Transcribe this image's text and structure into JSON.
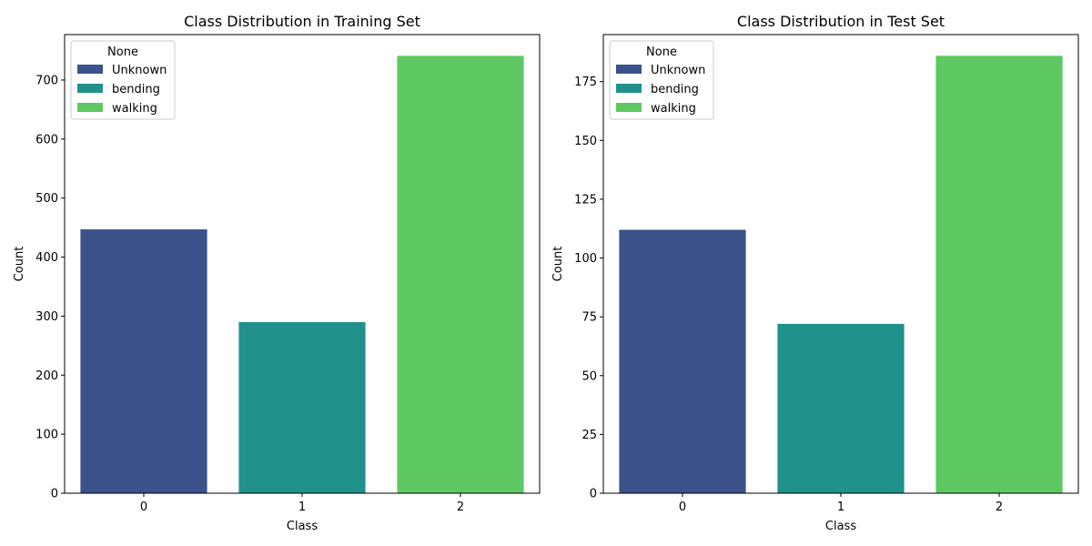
{
  "legend_title": "None",
  "chart_data": [
    {
      "type": "bar",
      "title": "Class Distribution in Training Set",
      "xlabel": "Class",
      "ylabel": "Count",
      "categories": [
        "0",
        "1",
        "2"
      ],
      "values": [
        447,
        290,
        741
      ],
      "series_names": [
        "Unknown",
        "bending",
        "walking"
      ],
      "colors": [
        "#3b528b",
        "#21918c",
        "#5ec962"
      ],
      "ylim": [
        0,
        777
      ],
      "yticks": [
        0,
        100,
        200,
        300,
        400,
        500,
        600,
        700
      ],
      "legend_position": "top-left",
      "grid": false
    },
    {
      "type": "bar",
      "title": "Class Distribution in Test Set",
      "xlabel": "Class",
      "ylabel": "Count",
      "categories": [
        "0",
        "1",
        "2"
      ],
      "values": [
        112,
        72,
        186
      ],
      "series_names": [
        "Unknown",
        "bending",
        "walking"
      ],
      "colors": [
        "#3b528b",
        "#21918c",
        "#5ec962"
      ],
      "ylim": [
        0,
        195
      ],
      "yticks": [
        0,
        25,
        50,
        75,
        100,
        125,
        150,
        175
      ],
      "legend_position": "top-left",
      "grid": false
    }
  ]
}
